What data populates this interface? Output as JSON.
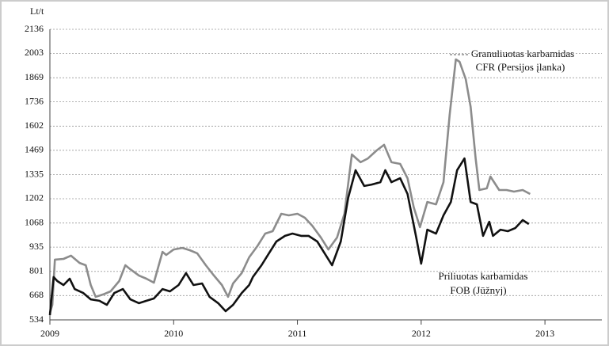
{
  "chart_data": {
    "type": "line",
    "y_label": "Lt/t",
    "annotations": [
      "Granuliuotas karbamidas",
      "CFR  (Persijos įlanka)",
      "Priliuotas karbamidas",
      "FOB (Jūžnyj)"
    ],
    "xlim": [
      2009,
      2013.46
    ],
    "xticks": [
      2009,
      2010,
      2011,
      2012,
      2013
    ],
    "ylim": [
      534,
      2136
    ],
    "yticks": [
      534,
      668,
      801,
      935,
      1068,
      1202,
      1335,
      1469,
      1602,
      1736,
      1869,
      2003,
      2136
    ],
    "grid": true,
    "series": [
      {
        "name": "CFR",
        "color": "#8c8c8c",
        "x": [
          2009.0,
          2009.02,
          2009.04,
          2009.11,
          2009.17,
          2009.24,
          2009.29,
          2009.33,
          2009.37,
          2009.43,
          2009.49,
          2009.56,
          2009.61,
          2009.65,
          2009.72,
          2009.78,
          2009.84,
          2009.91,
          2009.94,
          2010.0,
          2010.07,
          2010.13,
          2010.19,
          2010.26,
          2010.32,
          2010.39,
          2010.44,
          2010.48,
          2010.55,
          2010.61,
          2010.68,
          2010.74,
          2010.8,
          2010.87,
          2010.93,
          2011.0,
          2011.06,
          2011.12,
          2011.19,
          2011.25,
          2011.32,
          2011.38,
          2011.44,
          2011.51,
          2011.57,
          2011.64,
          2011.7,
          2011.76,
          2011.83,
          2011.89,
          2011.94,
          2011.99,
          2012.05,
          2012.12,
          2012.18,
          2012.23,
          2012.28,
          2012.31,
          2012.36,
          2012.4,
          2012.44,
          2012.47,
          2012.53,
          2012.56,
          2012.63,
          2012.69,
          2012.75,
          2012.82,
          2012.88
        ],
        "values": [
          573,
          617,
          866,
          870,
          888,
          848,
          835,
          726,
          661,
          674,
          691,
          748,
          835,
          813,
          778,
          761,
          739,
          909,
          892,
          922,
          931,
          918,
          901,
          835,
          783,
          726,
          661,
          735,
          792,
          879,
          944,
          1010,
          1023,
          1119,
          1110,
          1119,
          1097,
          1053,
          988,
          922,
          988,
          1119,
          1446,
          1403,
          1424,
          1468,
          1499,
          1403,
          1394,
          1315,
          1154,
          1045,
          1184,
          1171,
          1293,
          1665,
          1970,
          1957,
          1861,
          1708,
          1424,
          1250,
          1259,
          1324,
          1250,
          1250,
          1241,
          1250,
          1228
        ]
      },
      {
        "name": "FOB",
        "color": "#111111",
        "x": [
          2009.0,
          2009.03,
          2009.06,
          2009.11,
          2009.16,
          2009.2,
          2009.27,
          2009.33,
          2009.4,
          2009.46,
          2009.52,
          2009.59,
          2009.65,
          2009.72,
          2009.78,
          2009.84,
          2009.91,
          2009.97,
          2010.04,
          2010.1,
          2010.16,
          2010.23,
          2010.29,
          2010.36,
          2010.42,
          2010.48,
          2010.55,
          2010.61,
          2010.64,
          2010.71,
          2010.77,
          2010.83,
          2010.9,
          2010.96,
          2011.03,
          2011.09,
          2011.16,
          2011.22,
          2011.28,
          2011.35,
          2011.41,
          2011.47,
          2011.54,
          2011.6,
          2011.67,
          2011.71,
          2011.76,
          2011.83,
          2011.89,
          2011.96,
          2012.0,
          2012.05,
          2012.12,
          2012.18,
          2012.24,
          2012.29,
          2012.35,
          2012.4,
          2012.45,
          2012.5,
          2012.55,
          2012.58,
          2012.64,
          2012.7,
          2012.76,
          2012.82,
          2012.87
        ],
        "values": [
          560,
          770,
          748,
          726,
          761,
          704,
          682,
          647,
          639,
          617,
          682,
          704,
          647,
          626,
          639,
          652,
          704,
          691,
          726,
          792,
          726,
          735,
          661,
          626,
          582,
          617,
          682,
          726,
          770,
          835,
          901,
          966,
          997,
          1010,
          997,
          997,
          966,
          901,
          835,
          966,
          1206,
          1359,
          1272,
          1280,
          1293,
          1359,
          1293,
          1315,
          1228,
          988,
          844,
          1031,
          1010,
          1110,
          1184,
          1359,
          1424,
          1184,
          1171,
          997,
          1075,
          997,
          1031,
          1023,
          1040,
          1084,
          1062
        ]
      }
    ]
  }
}
